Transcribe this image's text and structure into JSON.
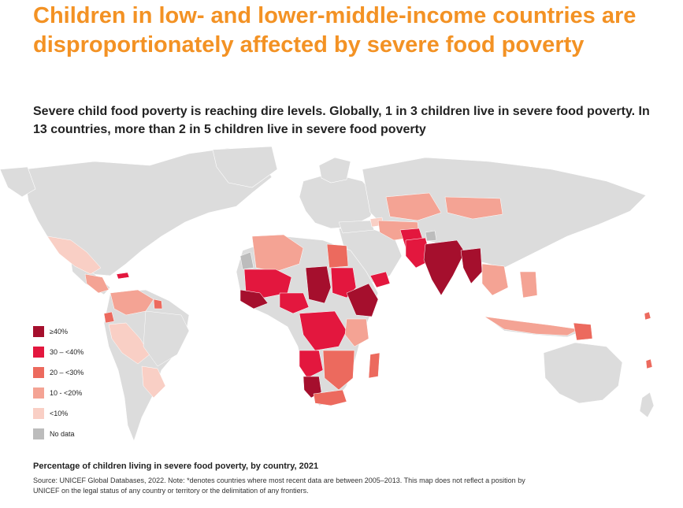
{
  "header": {
    "title": "Children in low- and lower-middle-income countries are disproportionately affected by severe food poverty",
    "subtitle": "Severe child food poverty is reaching dire levels. Globally, 1 in 3 children live in severe food poverty. In 13 countries, more than 2 in 5 children live in severe food poverty"
  },
  "legend": {
    "items": [
      {
        "label": "≥40%",
        "color": "#a50f2d"
      },
      {
        "label": "30 – <40%",
        "color": "#e3173e"
      },
      {
        "label": "20 – <30%",
        "color": "#ec6a5e"
      },
      {
        "label": "10 - <20%",
        "color": "#f4a394"
      },
      {
        "label": "<10%",
        "color": "#f9cfc5"
      },
      {
        "label": "No data",
        "color": "#bcbcbc"
      }
    ]
  },
  "map": {
    "land_color": "#dcdcdc"
  },
  "footer": {
    "caption": "Percentage of children living in severe food poverty, by country, 2021",
    "source": "Source: UNICEF Global Databases, 2022. Note: *denotes countries where most recent data are between 2005–2013. This map does not reflect a position by UNICEF on the legal status of any country or territory or the delimitation of any frontiers."
  }
}
